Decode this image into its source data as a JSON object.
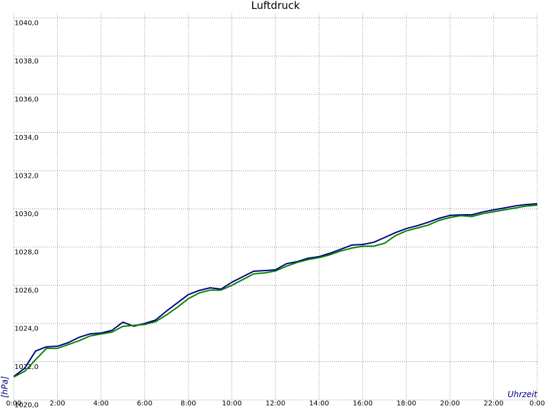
{
  "chart_data": {
    "type": "line",
    "title": "Luftdruck",
    "y_label": "[hPa]",
    "x_label": "Uhrzeit",
    "x": [
      0,
      0.5,
      1,
      1.5,
      2,
      2.5,
      3,
      3.5,
      4,
      4.5,
      5,
      5.5,
      6,
      6.5,
      7,
      7.5,
      8,
      8.5,
      9,
      9.5,
      10,
      10.5,
      11,
      11.5,
      12,
      12.5,
      13,
      13.5,
      14,
      14.5,
      15,
      15.5,
      16,
      16.5,
      17,
      17.5,
      18,
      18.5,
      19,
      19.5,
      20,
      20.5,
      21,
      21.5,
      22,
      22.5,
      23,
      23.5,
      24
    ],
    "series": [
      {
        "color": "#000080",
        "values": [
          1021.23,
          1021.66,
          1022.56,
          1022.78,
          1022.81,
          1023.0,
          1023.28,
          1023.46,
          1023.5,
          1023.64,
          1024.07,
          1023.86,
          1024.0,
          1024.18,
          1024.65,
          1025.08,
          1025.51,
          1025.73,
          1025.87,
          1025.8,
          1026.16,
          1026.45,
          1026.74,
          1026.77,
          1026.81,
          1027.13,
          1027.24,
          1027.42,
          1027.5,
          1027.68,
          1027.89,
          1028.11,
          1028.14,
          1028.25,
          1028.5,
          1028.76,
          1028.97,
          1029.12,
          1029.3,
          1029.51,
          1029.66,
          1029.69,
          1029.69,
          1029.84,
          1029.95,
          1030.05,
          1030.16,
          1030.23,
          1030.27
        ]
      },
      {
        "color": "#008000",
        "values": [
          1021.2,
          1021.5,
          1022.1,
          1022.7,
          1022.7,
          1022.9,
          1023.1,
          1023.35,
          1023.45,
          1023.55,
          1023.85,
          1023.9,
          1023.95,
          1024.1,
          1024.45,
          1024.85,
          1025.3,
          1025.6,
          1025.75,
          1025.75,
          1026.0,
          1026.3,
          1026.6,
          1026.65,
          1026.75,
          1027.0,
          1027.2,
          1027.35,
          1027.45,
          1027.6,
          1027.8,
          1027.95,
          1028.05,
          1028.05,
          1028.2,
          1028.6,
          1028.85,
          1029.0,
          1029.15,
          1029.4,
          1029.55,
          1029.65,
          1029.6,
          1029.75,
          1029.85,
          1029.95,
          1030.05,
          1030.15,
          1030.2
        ]
      }
    ],
    "xlim": [
      0,
      24
    ],
    "xticks": [
      {
        "value": 0,
        "label": "0:00"
      },
      {
        "value": 2,
        "label": "2:00"
      },
      {
        "value": 4,
        "label": "4:00"
      },
      {
        "value": 6,
        "label": "6:00"
      },
      {
        "value": 8,
        "label": "8:00"
      },
      {
        "value": 10,
        "label": "10:00"
      },
      {
        "value": 12,
        "label": "12:00"
      },
      {
        "value": 14,
        "label": "14:00"
      },
      {
        "value": 16,
        "label": "16:00"
      },
      {
        "value": 18,
        "label": "18:00"
      },
      {
        "value": 20,
        "label": "20:00"
      },
      {
        "value": 22,
        "label": "22:00"
      },
      {
        "value": 24,
        "label": "0:00"
      }
    ],
    "ylim": [
      1020,
      1040
    ],
    "yticks": [
      {
        "value": 1020,
        "label": "1020,0"
      },
      {
        "value": 1022,
        "label": "1022,0"
      },
      {
        "value": 1024,
        "label": "1024,0"
      },
      {
        "value": 1026,
        "label": "1026,0"
      },
      {
        "value": 1028,
        "label": "1028,0"
      },
      {
        "value": 1030,
        "label": "1030,0"
      },
      {
        "value": 1032,
        "label": "1032,0"
      },
      {
        "value": 1034,
        "label": "1034,0"
      },
      {
        "value": 1036,
        "label": "1036,0"
      },
      {
        "value": 1038,
        "label": "1038,0"
      },
      {
        "value": 1040,
        "label": "1040,0"
      }
    ],
    "grid": true
  }
}
